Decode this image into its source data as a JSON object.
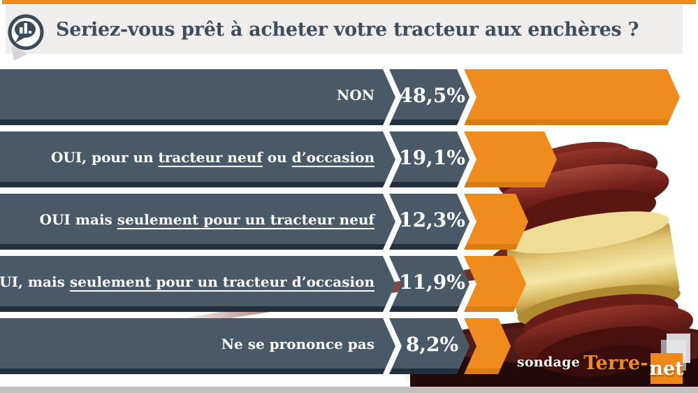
{
  "header": {
    "title": "Seriez-vous prêt à acheter votre tracteur aux enchères ?",
    "icon": "poll-speech-bubble-chart-icon"
  },
  "chart_data": {
    "type": "bar",
    "orientation": "horizontal",
    "unit": "%",
    "title": "Seriez-vous prêt à acheter votre tracteur aux enchères ?",
    "categories": [
      "NON",
      "OUI, pour un tracteur neuf ou d’occasion",
      "OUI mais seulement pour un tracteur neuf",
      "OUI, mais seulement pour un tracteur d’occasion",
      "Ne se prononce pas"
    ],
    "values": [
      48.5,
      19.1,
      12.3,
      11.9,
      8.2
    ],
    "value_labels": [
      "48,5%",
      "19,1%",
      "12,3%",
      "11,9%",
      "8,2%"
    ],
    "rows": [
      {
        "value": 48.5,
        "value_text": "48,5%",
        "label_segments": [
          {
            "text": "NON",
            "underline": false
          }
        ]
      },
      {
        "value": 19.1,
        "value_text": "19,1%",
        "label_segments": [
          {
            "text": "OUI, pour un ",
            "underline": false
          },
          {
            "text": "tracteur neuf",
            "underline": true
          },
          {
            "text": " ou ",
            "underline": false
          },
          {
            "text": "d’occasion",
            "underline": true
          }
        ]
      },
      {
        "value": 12.3,
        "value_text": "12,3%",
        "label_segments": [
          {
            "text": "OUI mais ",
            "underline": false
          },
          {
            "text": "seulement pour un tracteur neuf",
            "underline": true
          }
        ]
      },
      {
        "value": 11.9,
        "value_text": "11,9%",
        "label_segments": [
          {
            "text": "OUI, mais ",
            "underline": false
          },
          {
            "text": "seulement pour un tracteur d’occasion",
            "underline": true
          }
        ]
      },
      {
        "value": 8.2,
        "value_text": "8,2%",
        "label_segments": [
          {
            "text": "Ne se prononce pas",
            "underline": false
          }
        ]
      }
    ],
    "colors": {
      "bar": "#4a5968",
      "bar_edge": "#22303e",
      "accent": "#f08c1e",
      "accent_edge": "#d97c12"
    },
    "legend_position": "none",
    "grid": false
  },
  "footer": {
    "credit_prefix": "sondage",
    "brand": "Terre-",
    "brand_suffix": "net"
  },
  "decor": {
    "photo_description": "wooden auction gavel with gold band on sound block"
  }
}
